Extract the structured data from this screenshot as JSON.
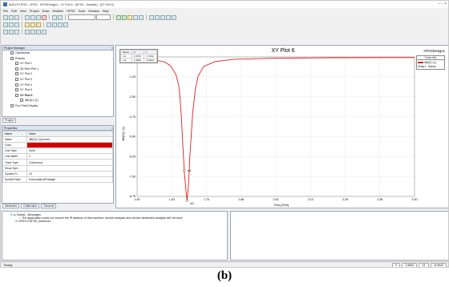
{
  "window": {
    "title": "ANSYS HFSS - HFSS - HFSSDesign1 - XY Plot 6 - [HFSS - Modeler] - [XY Plot 6]",
    "controls": "– ▫ ×"
  },
  "menu": [
    "File",
    "Edit",
    "View",
    "Project",
    "Draw",
    "Modeler",
    "HFSS",
    "Tools",
    "Window",
    "Help"
  ],
  "project_manager": {
    "title": "Project Manager",
    "items": [
      {
        "label": "Optimetrics",
        "indent": 10
      },
      {
        "label": "Results",
        "indent": 10
      },
      {
        "label": "XY Plot 1",
        "indent": 16
      },
      {
        "label": "3D Rect Plot 1",
        "indent": 16
      },
      {
        "label": "XY Plot 2",
        "indent": 16
      },
      {
        "label": "XY Plot 3",
        "indent": 16
      },
      {
        "label": "XY Plot 4",
        "indent": 16
      },
      {
        "label": "XY Plot 5",
        "indent": 16
      },
      {
        "label": "XY Plot 6",
        "indent": 16,
        "selected": true
      },
      {
        "label": "dB(S(1,1))",
        "indent": 22
      },
      {
        "label": "Port Field Display",
        "indent": 10
      }
    ],
    "tab": "Project"
  },
  "properties": {
    "title": "Properties",
    "headers": [
      "Name",
      "Value"
    ],
    "rows": [
      {
        "name": "Name",
        "value": "dB(S(1,1))Curve1"
      },
      {
        "name": "Color",
        "value": "",
        "swatch": "#d40000"
      },
      {
        "name": "Line Style",
        "value": "Solid"
      },
      {
        "name": "Line Width",
        "value": "1"
      },
      {
        "name": "Trace Type",
        "value": "Continuous"
      },
      {
        "name": "Show Sym...",
        "value": ""
      },
      {
        "name": "Symbol Fr...",
        "value": "15"
      },
      {
        "name": "Symbol Style",
        "value": "HorizontalLeftTriangle"
      }
    ],
    "tabs": [
      "Attributes",
      "Calibration",
      "General"
    ]
  },
  "plot": {
    "title": "XY Plot 6",
    "design_label": "HFSSDesign1",
    "curve_color": "#e02020",
    "marker_table": {
      "headers": [
        "Name",
        "X",
        "Y"
      ],
      "rows": [
        [
          "m1",
          "1.6700",
          "-7.1311"
        ],
        [
          "m2",
          "1.6800",
          "-8.9942"
        ]
      ]
    },
    "legend": {
      "title": "Curve Info",
      "entry": "dB(S(1,1))",
      "sub": "Setup1 : Sweep"
    },
    "marker_labels": [
      "m1",
      "m2"
    ]
  },
  "chart_data": {
    "type": "line",
    "xlabel": "Freq [GHz]",
    "ylabel": "dB(S(1,1))",
    "xlim": [
      1.5,
      2.5
    ],
    "ylim": [
      -8.75,
      0
    ],
    "xticks": [
      "1.50",
      "1.63",
      "1.75",
      "1.88",
      "2.00",
      "2.13",
      "2.25",
      "2.38",
      "2.50"
    ],
    "yticks": [
      "0.00",
      "-1.25",
      "-2.50",
      "-3.75",
      "-5.00",
      "-6.25",
      "-7.50",
      "-8.75"
    ],
    "series": [
      {
        "name": "dB(S(1,1))",
        "x": [
          1.5,
          1.55,
          1.6,
          1.62,
          1.64,
          1.65,
          1.655,
          1.66,
          1.665,
          1.67,
          1.675,
          1.68,
          1.685,
          1.69,
          1.7,
          1.71,
          1.72,
          1.74,
          1.78,
          1.85,
          2.0,
          2.2,
          2.5
        ],
        "y": [
          -0.08,
          -0.15,
          -0.32,
          -0.55,
          -1.1,
          -1.8,
          -2.6,
          -3.9,
          -5.6,
          -7.13,
          -8.2,
          -8.99,
          -8.1,
          -6.3,
          -3.6,
          -2.0,
          -1.2,
          -0.6,
          -0.3,
          -0.15,
          -0.08,
          -0.05,
          -0.04
        ]
      }
    ]
  },
  "message_manager": {
    "title": "Global - Messages",
    "lines": [
      "The application could not resolve the IP address of this machine; remote analysis and remote distributed analysis will not work.",
      "HFSS-0:HFSS_antenna1"
    ]
  },
  "status": {
    "left": "Ready",
    "fields": [
      "0",
      "1.6800",
      "V1",
      "-8.9942"
    ]
  },
  "caption": "(b)"
}
